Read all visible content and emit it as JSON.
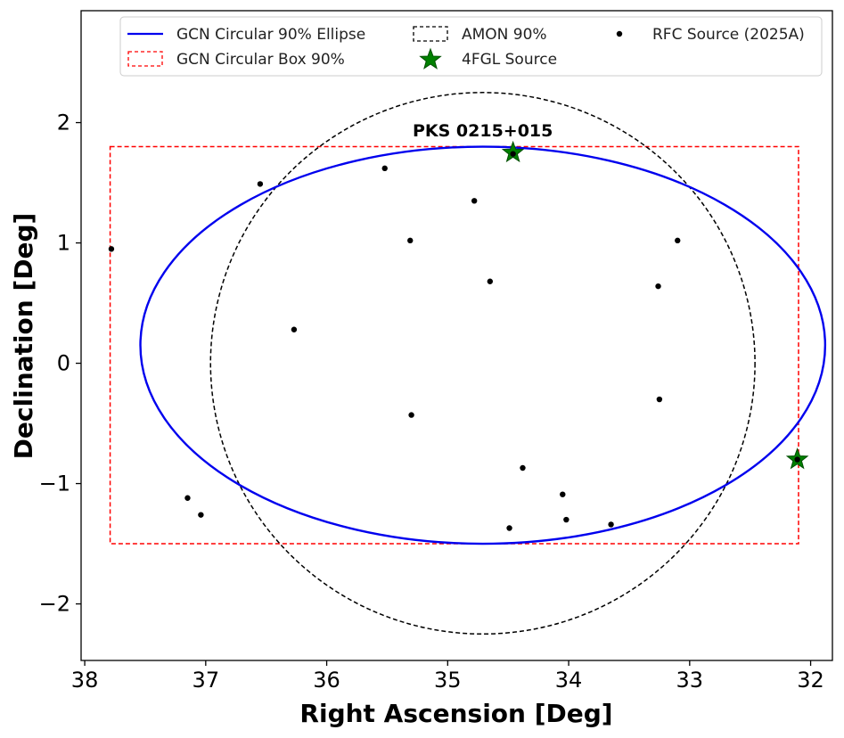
{
  "chart_data": {
    "type": "scatter",
    "title": "",
    "xlabel": "Right Ascension [Deg]",
    "ylabel": "Declination [Deg]",
    "xlim": [
      38.03,
      31.82
    ],
    "ylim": [
      -2.47,
      2.93
    ],
    "x_inverted": true,
    "grid": false,
    "legend_position": "top",
    "xticks": [
      38,
      37,
      36,
      35,
      34,
      33,
      32
    ],
    "yticks": [
      -2,
      -1,
      0,
      1,
      2
    ],
    "xtick_labels": [
      "38",
      "37",
      "36",
      "35",
      "34",
      "33",
      "32"
    ],
    "ytick_labels": [
      "−2",
      "−1",
      "0",
      "1",
      "2"
    ],
    "gcn_ellipse": {
      "label": "GCN Circular 90% Ellipse",
      "center_ra": 34.71,
      "center_dec": 0.15,
      "semi_axis_ra": 2.83,
      "semi_axis_dec": 1.65,
      "color": "#0000ee"
    },
    "gcn_box": {
      "label": "GCN Circular Box 90%",
      "ra_min": 32.1,
      "ra_max": 37.79,
      "dec_min": -1.5,
      "dec_max": 1.8,
      "color": "#ff0000"
    },
    "amon_circle": {
      "label": "AMON 90%",
      "center_ra": 34.71,
      "center_dec": 0.0,
      "radius_dec": 2.25,
      "radius_ra": 2.25,
      "color": "#000000"
    },
    "fgl_sources": {
      "label": "4FGL Source",
      "color": "#008000",
      "points": [
        {
          "ra": 34.46,
          "dec": 1.75
        },
        {
          "ra": 32.11,
          "dec": -0.8
        }
      ]
    },
    "rfc_sources": {
      "label": "RFC Source (2025A)",
      "color": "#000000",
      "points": [
        {
          "ra": 37.78,
          "dec": 0.95
        },
        {
          "ra": 36.55,
          "dec": 1.49
        },
        {
          "ra": 35.52,
          "dec": 1.62
        },
        {
          "ra": 34.78,
          "dec": 1.35
        },
        {
          "ra": 35.31,
          "dec": 1.02
        },
        {
          "ra": 34.65,
          "dec": 0.68
        },
        {
          "ra": 36.27,
          "dec": 0.28
        },
        {
          "ra": 33.26,
          "dec": 0.64
        },
        {
          "ra": 33.1,
          "dec": 1.02
        },
        {
          "ra": 35.3,
          "dec": -0.43
        },
        {
          "ra": 33.25,
          "dec": -0.3
        },
        {
          "ra": 34.38,
          "dec": -0.87
        },
        {
          "ra": 34.05,
          "dec": -1.09
        },
        {
          "ra": 34.02,
          "dec": -1.3
        },
        {
          "ra": 34.49,
          "dec": -1.37
        },
        {
          "ra": 33.65,
          "dec": -1.34
        },
        {
          "ra": 37.15,
          "dec": -1.12
        },
        {
          "ra": 37.04,
          "dec": -1.26
        },
        {
          "ra": 34.46,
          "dec": 1.74
        },
        {
          "ra": 32.11,
          "dec": -0.8
        }
      ]
    },
    "annotations": [
      {
        "text": "PKS 0215+015",
        "ra": 34.71,
        "dec": 1.93
      }
    ]
  }
}
